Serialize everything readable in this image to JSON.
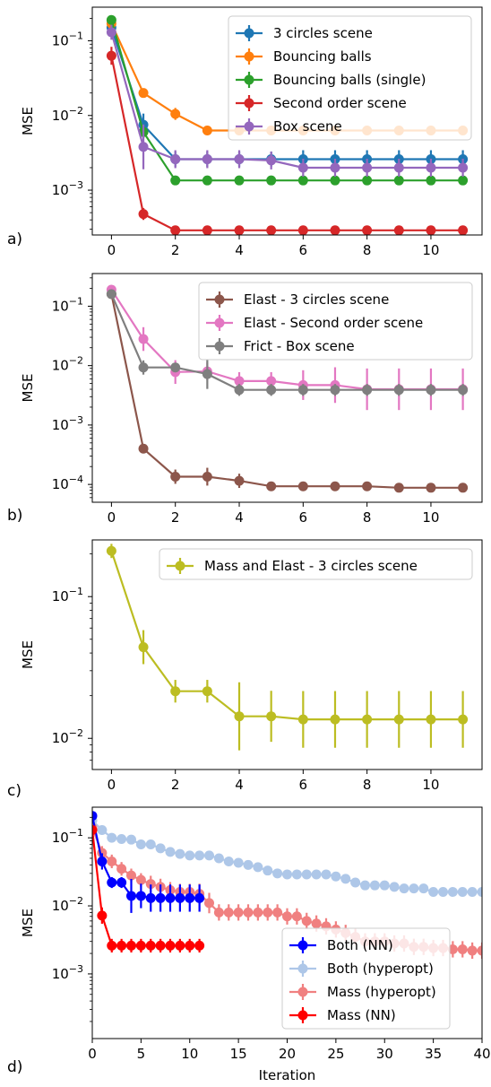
{
  "chart_data": [
    {
      "panel_label": "a)",
      "type": "line",
      "xlabel": "",
      "ylabel": "MSE",
      "yscale": "log",
      "xlim": [
        -0.6,
        11.6
      ],
      "ylim_log10": [
        -3.6,
        -0.55
      ],
      "xticks": [
        0,
        2,
        4,
        6,
        8,
        10
      ],
      "xtick_labels": [
        "0",
        "2",
        "4",
        "6",
        "8",
        "10"
      ],
      "yticks_log10": [
        -3,
        -2,
        -1
      ],
      "ytick_labels": [
        "10-3",
        "10-2",
        "10-1"
      ],
      "legend_position": "top-right",
      "series": [
        {
          "name": "3 circles scene",
          "color": "#1f77b4",
          "x": [
            0,
            1,
            2,
            3,
            4,
            5,
            6,
            7,
            8,
            9,
            10,
            11
          ],
          "y": [
            0.15,
            0.0075,
            0.0026,
            0.0026,
            0.0026,
            0.0026,
            0.0026,
            0.0026,
            0.0026,
            0.0026,
            0.0026,
            0.0026
          ],
          "yerr_log": [
            0.08,
            0.15,
            0.1,
            0.1,
            0.1,
            0.1,
            0.12,
            0.12,
            0.12,
            0.12,
            0.12,
            0.12
          ]
        },
        {
          "name": "Bouncing balls",
          "color": "#ff7f0e",
          "x": [
            0,
            1,
            2,
            3,
            4,
            5,
            6,
            7,
            8,
            9,
            10,
            11
          ],
          "y": [
            0.17,
            0.02,
            0.0105,
            0.0063,
            0.0063,
            0.0063,
            0.0063,
            0.0063,
            0.0063,
            0.0063,
            0.0063,
            0.0063
          ],
          "yerr_log": [
            0.05,
            0.04,
            0.08,
            0.05,
            0.05,
            0.05,
            0.05,
            0.05,
            0.05,
            0.05,
            0.05,
            0.05
          ]
        },
        {
          "name": "Bouncing balls (single)",
          "color": "#2ca02c",
          "x": [
            0,
            1,
            2,
            3,
            4,
            5,
            6,
            7,
            8,
            9,
            10,
            11
          ],
          "y": [
            0.19,
            0.006,
            0.00135,
            0.00135,
            0.00135,
            0.00135,
            0.00135,
            0.00135,
            0.00135,
            0.00135,
            0.00135,
            0.00135
          ],
          "yerr_log": [
            0.06,
            0.08,
            0.04,
            0.04,
            0.04,
            0.04,
            0.04,
            0.04,
            0.04,
            0.04,
            0.04,
            0.04
          ]
        },
        {
          "name": "Second order scene",
          "color": "#d62728",
          "x": [
            0,
            1,
            2,
            3,
            4,
            5,
            6,
            7,
            8,
            9,
            10,
            11
          ],
          "y": [
            0.063,
            0.00048,
            0.00029,
            0.00029,
            0.00029,
            0.00029,
            0.00029,
            0.00029,
            0.00029,
            0.00029,
            0.00029,
            0.00029
          ],
          "yerr_log": [
            0.12,
            0.08,
            0.05,
            0.05,
            0.05,
            0.05,
            0.05,
            0.05,
            0.05,
            0.05,
            0.05,
            0.05
          ]
        },
        {
          "name": "Box scene",
          "color": "#9467bd",
          "x": [
            0,
            1,
            2,
            3,
            4,
            5,
            6,
            7,
            8,
            9,
            10,
            11
          ],
          "y": [
            0.13,
            0.0038,
            0.0026,
            0.0026,
            0.0026,
            0.0025,
            0.002,
            0.002,
            0.002,
            0.002,
            0.002,
            0.002
          ],
          "yerr_log": [
            0.1,
            0.3,
            0.12,
            0.12,
            0.12,
            0.12,
            0.12,
            0.12,
            0.12,
            0.12,
            0.12,
            0.12
          ]
        }
      ]
    },
    {
      "panel_label": "b)",
      "type": "line",
      "xlabel": "",
      "ylabel": "MSE",
      "yscale": "log",
      "xlim": [
        -0.6,
        11.6
      ],
      "ylim_log10": [
        -4.3,
        -0.45
      ],
      "xticks": [
        0,
        2,
        4,
        6,
        8,
        10
      ],
      "xtick_labels": [
        "0",
        "2",
        "4",
        "6",
        "8",
        "10"
      ],
      "yticks_log10": [
        -4,
        -3,
        -2,
        -1
      ],
      "ytick_labels": [
        "10-4",
        "10-3",
        "10-2",
        "10-1"
      ],
      "legend_position": "top-right",
      "series": [
        {
          "name": "Elast - 3 circles scene",
          "color": "#8c564b",
          "x": [
            0,
            1,
            2,
            3,
            4,
            5,
            6,
            7,
            8,
            9,
            10,
            11
          ],
          "y": [
            0.16,
            0.0004,
            0.000135,
            0.000135,
            0.000115,
            9.3e-05,
            9.3e-05,
            9.3e-05,
            9.3e-05,
            8.8e-05,
            8.8e-05,
            8.8e-05
          ],
          "yerr_log": [
            0.05,
            0.05,
            0.12,
            0.15,
            0.12,
            0.05,
            0.05,
            0.05,
            0.05,
            0.05,
            0.05,
            0.05
          ]
        },
        {
          "name": "Elast - Second order scene",
          "color": "#e377c2",
          "x": [
            0,
            1,
            2,
            3,
            4,
            5,
            6,
            7,
            8,
            9,
            10,
            11
          ],
          "y": [
            0.19,
            0.028,
            0.0078,
            0.008,
            0.0055,
            0.0055,
            0.0047,
            0.0047,
            0.004,
            0.004,
            0.004,
            0.004
          ],
          "yerr_log": [
            0.05,
            0.2,
            0.2,
            0.15,
            0.15,
            0.15,
            0.25,
            0.3,
            0.35,
            0.35,
            0.35,
            0.35
          ]
        },
        {
          "name": "Frict - Box scene",
          "color": "#7f7f7f",
          "x": [
            0,
            1,
            2,
            3,
            4,
            5,
            6,
            7,
            8,
            9,
            10,
            11
          ],
          "y": [
            0.16,
            0.0093,
            0.0093,
            0.0072,
            0.0039,
            0.0039,
            0.0039,
            0.0039,
            0.0039,
            0.0039,
            0.0039,
            0.0039
          ],
          "yerr_log": [
            0.05,
            0.12,
            0.08,
            0.25,
            0.1,
            0.1,
            0.1,
            0.1,
            0.1,
            0.1,
            0.1,
            0.1
          ]
        }
      ]
    },
    {
      "panel_label": "c)",
      "type": "line",
      "xlabel": "",
      "ylabel": "MSE",
      "yscale": "log",
      "xlim": [
        -0.6,
        11.6
      ],
      "ylim_log10": [
        -2.22,
        -0.6
      ],
      "xticks": [
        0,
        2,
        4,
        6,
        8,
        10
      ],
      "xtick_labels": [
        "0",
        "2",
        "4",
        "6",
        "8",
        "10"
      ],
      "yticks_log10": [
        -2,
        -1
      ],
      "ytick_labels": [
        "10-2",
        "10-1"
      ],
      "legend_position": "top-right",
      "series": [
        {
          "name": "Mass and Elast - 3 circles scene",
          "color": "#bcbd22",
          "x": [
            0,
            1,
            2,
            3,
            4,
            5,
            6,
            7,
            8,
            9,
            10,
            11
          ],
          "y": [
            0.21,
            0.044,
            0.0215,
            0.0215,
            0.0143,
            0.0143,
            0.0136,
            0.0136,
            0.0136,
            0.0136,
            0.0136,
            0.0136
          ],
          "yerr_log": [
            0.05,
            0.12,
            0.08,
            0.08,
            0.24,
            0.18,
            0.2,
            0.2,
            0.2,
            0.2,
            0.2,
            0.2
          ]
        }
      ]
    },
    {
      "panel_label": "d)",
      "type": "line",
      "xlabel": "Iteration",
      "ylabel": "MSE",
      "yscale": "log",
      "xlim": [
        0,
        40
      ],
      "ylim_log10": [
        -3.95,
        -0.55
      ],
      "xticks": [
        0,
        5,
        10,
        15,
        20,
        25,
        30,
        35,
        40
      ],
      "xtick_labels": [
        "0",
        "5",
        "10",
        "15",
        "20",
        "25",
        "30",
        "35",
        "40"
      ],
      "yticks_log10": [
        -3,
        -2,
        -1
      ],
      "ytick_labels": [
        "10-3",
        "10-2",
        "10-1"
      ],
      "legend_position": "lower-right",
      "series": [
        {
          "name": "Both (hyperopt)",
          "color": "#aec7e8",
          "x": [
            0,
            1,
            2,
            3,
            4,
            5,
            6,
            7,
            8,
            9,
            10,
            11,
            12,
            13,
            14,
            15,
            16,
            17,
            18,
            19,
            20,
            21,
            22,
            23,
            24,
            25,
            26,
            27,
            28,
            29,
            30,
            31,
            32,
            33,
            34,
            35,
            36,
            37,
            38,
            39,
            40
          ],
          "y": [
            0.18,
            0.13,
            0.1,
            0.096,
            0.094,
            0.08,
            0.08,
            0.07,
            0.062,
            0.058,
            0.055,
            0.055,
            0.055,
            0.05,
            0.045,
            0.043,
            0.04,
            0.037,
            0.033,
            0.03,
            0.029,
            0.029,
            0.029,
            0.029,
            0.029,
            0.027,
            0.025,
            0.022,
            0.02,
            0.02,
            0.02,
            0.019,
            0.018,
            0.018,
            0.018,
            0.016,
            0.016,
            0.016,
            0.016,
            0.016,
            0.016
          ],
          "yerr_log": [
            0.04,
            0.04,
            0.04,
            0.04,
            0.04,
            0.04,
            0.04,
            0.04,
            0.04,
            0.04,
            0.04,
            0.04,
            0.04,
            0.04,
            0.04,
            0.04,
            0.04,
            0.04,
            0.04,
            0.04,
            0.04,
            0.04,
            0.04,
            0.04,
            0.04,
            0.04,
            0.04,
            0.04,
            0.04,
            0.04,
            0.04,
            0.04,
            0.04,
            0.04,
            0.04,
            0.04,
            0.04,
            0.04,
            0.04,
            0.04,
            0.04
          ]
        },
        {
          "name": "Mass (hyperopt)",
          "color": "#f08080",
          "x": [
            0,
            1,
            2,
            3,
            4,
            5,
            6,
            7,
            8,
            9,
            10,
            11,
            12,
            13,
            14,
            15,
            16,
            17,
            18,
            19,
            20,
            21,
            22,
            23,
            24,
            25,
            26,
            27,
            28,
            29,
            30,
            31,
            32,
            33,
            34,
            35,
            36,
            37,
            38,
            39,
            40
          ],
          "y": [
            0.14,
            0.06,
            0.045,
            0.035,
            0.028,
            0.024,
            0.021,
            0.019,
            0.017,
            0.016,
            0.016,
            0.015,
            0.011,
            0.008,
            0.008,
            0.008,
            0.008,
            0.008,
            0.008,
            0.008,
            0.007,
            0.007,
            0.006,
            0.0055,
            0.005,
            0.0045,
            0.004,
            0.0035,
            0.003,
            0.003,
            0.003,
            0.0028,
            0.0028,
            0.0025,
            0.0025,
            0.0024,
            0.0024,
            0.0023,
            0.0023,
            0.0022,
            0.0022
          ],
          "yerr_log": [
            0.05,
            0.1,
            0.1,
            0.1,
            0.1,
            0.1,
            0.12,
            0.12,
            0.12,
            0.12,
            0.12,
            0.15,
            0.15,
            0.12,
            0.12,
            0.12,
            0.12,
            0.12,
            0.12,
            0.12,
            0.12,
            0.12,
            0.12,
            0.12,
            0.12,
            0.12,
            0.12,
            0.12,
            0.12,
            0.12,
            0.12,
            0.12,
            0.12,
            0.12,
            0.12,
            0.12,
            0.12,
            0.12,
            0.12,
            0.12,
            0.12
          ]
        },
        {
          "name": "Both (NN)",
          "color": "#0000ff",
          "x": [
            0,
            1,
            2,
            3,
            4,
            5,
            6,
            7,
            8,
            9,
            10,
            11
          ],
          "y": [
            0.21,
            0.045,
            0.022,
            0.022,
            0.014,
            0.014,
            0.013,
            0.013,
            0.013,
            0.013,
            0.013,
            0.013
          ],
          "yerr_log": [
            0.05,
            0.12,
            0.08,
            0.08,
            0.25,
            0.18,
            0.2,
            0.2,
            0.2,
            0.2,
            0.2,
            0.2
          ]
        },
        {
          "name": "Mass (NN)",
          "color": "#ff0000",
          "x": [
            0,
            1,
            2,
            3,
            4,
            5,
            6,
            7,
            8,
            9,
            10,
            11
          ],
          "y": [
            0.13,
            0.0072,
            0.0026,
            0.0026,
            0.0026,
            0.0026,
            0.0026,
            0.0026,
            0.0026,
            0.0026,
            0.0026,
            0.0026
          ],
          "yerr_log": [
            0.05,
            0.12,
            0.1,
            0.1,
            0.1,
            0.1,
            0.1,
            0.1,
            0.1,
            0.1,
            0.1,
            0.1
          ]
        }
      ],
      "legend_order": [
        "Both (NN)",
        "Both (hyperopt)",
        "Mass (hyperopt)",
        "Mass (NN)"
      ]
    }
  ]
}
